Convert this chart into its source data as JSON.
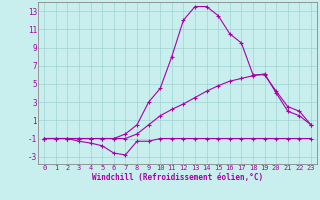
{
  "background_color": "#c8eeee",
  "line_color": "#aa00aa",
  "x": [
    0,
    1,
    2,
    3,
    4,
    5,
    6,
    7,
    8,
    9,
    10,
    11,
    12,
    13,
    14,
    15,
    16,
    17,
    18,
    19,
    20,
    21,
    22,
    23
  ],
  "line1_y": [
    -1,
    -1,
    -1,
    -1.3,
    -1.5,
    -1.8,
    -2.6,
    -2.8,
    -1.3,
    -1.3,
    -1,
    -1,
    -1,
    -1,
    -1,
    -1,
    -1,
    -1,
    -1,
    -1,
    -1,
    -1,
    -1,
    -1
  ],
  "line2_y": [
    -1,
    -1,
    -1,
    -1,
    -1,
    -1,
    -1,
    -0.5,
    0.5,
    3.0,
    4.5,
    8.0,
    12.0,
    13.5,
    13.5,
    12.5,
    10.5,
    9.5,
    6.0,
    6.0,
    4.2,
    2.5,
    2.0,
    0.5
  ],
  "line3_y": [
    -1,
    -1,
    -1,
    -1,
    -1,
    -1,
    -1,
    -1,
    -0.5,
    0.5,
    1.5,
    2.2,
    2.8,
    3.5,
    4.2,
    4.8,
    5.3,
    5.6,
    5.9,
    6.1,
    4.0,
    2.0,
    1.5,
    0.5
  ],
  "xlabel": "Windchill (Refroidissement éolien,°C)",
  "xticks": [
    0,
    1,
    2,
    3,
    4,
    5,
    6,
    7,
    8,
    9,
    10,
    11,
    12,
    13,
    14,
    15,
    16,
    17,
    18,
    19,
    20,
    21,
    22,
    23
  ],
  "yticks": [
    -3,
    -1,
    1,
    3,
    5,
    7,
    9,
    11,
    13
  ],
  "xmin": -0.5,
  "xmax": 23.5,
  "ymin": -3.8,
  "ymax": 14.0,
  "grid_color": "#a0d4d4",
  "spine_color": "#888888",
  "tick_fontsize": 5.0,
  "label_fontsize": 5.5
}
